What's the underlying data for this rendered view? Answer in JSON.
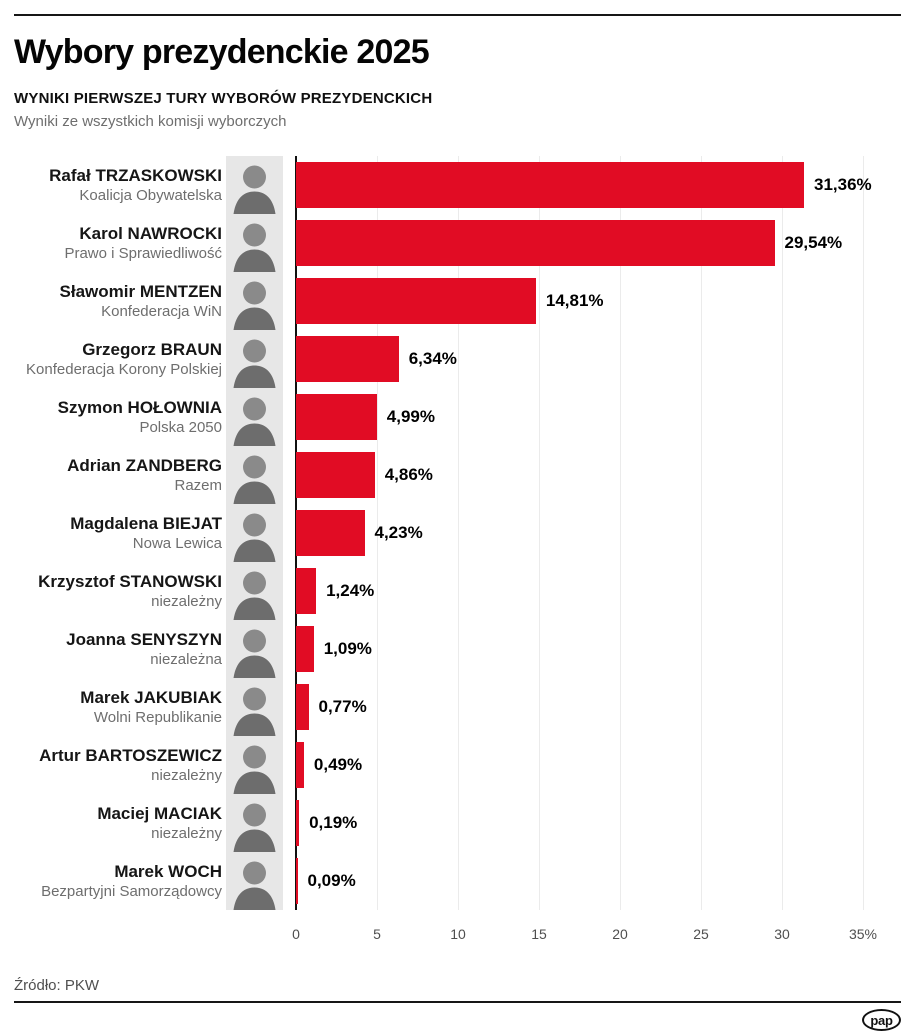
{
  "header": {
    "title": "Wybory prezydenckie 2025",
    "subtitle": "WYNIKI PIERWSZEJ TURY WYBORÓW PREZYDENCKICH",
    "description": "Wyniki ze wszystkich komisji wyborczych"
  },
  "chart_data": {
    "type": "bar",
    "orientation": "horizontal",
    "unit": "%",
    "xlim": [
      0,
      35
    ],
    "x_ticks": [
      "0",
      "5",
      "10",
      "15",
      "20",
      "25",
      "30",
      "35%"
    ],
    "grid": "vertical-light",
    "bar_color": "#e10c24",
    "axis_color": "#111111",
    "candidates": [
      {
        "name": "Rafał TRZASKOWSKI",
        "party": "Koalicja Obywatelska",
        "value": 31.36,
        "label": "31,36%"
      },
      {
        "name": "Karol NAWROCKI",
        "party": "Prawo i Sprawiedliwość",
        "value": 29.54,
        "label": "29,54%"
      },
      {
        "name": "Sławomir MENTZEN",
        "party": "Konfederacja WiN",
        "value": 14.81,
        "label": "14,81%"
      },
      {
        "name": "Grzegorz BRAUN",
        "party": "Konfederacja Korony Polskiej",
        "value": 6.34,
        "label": "6,34%"
      },
      {
        "name": "Szymon HOŁOWNIA",
        "party": "Polska 2050",
        "value": 4.99,
        "label": "4,99%"
      },
      {
        "name": "Adrian ZANDBERG",
        "party": "Razem",
        "value": 4.86,
        "label": "4,86%"
      },
      {
        "name": "Magdalena BIEJAT",
        "party": "Nowa Lewica",
        "value": 4.23,
        "label": "4,23%"
      },
      {
        "name": "Krzysztof STANOWSKI",
        "party": "niezależny",
        "value": 1.24,
        "label": "1,24%"
      },
      {
        "name": "Joanna SENYSZYN",
        "party": "niezależna",
        "value": 1.09,
        "label": "1,09%"
      },
      {
        "name": "Marek JAKUBIAK",
        "party": "Wolni Republikanie",
        "value": 0.77,
        "label": "0,77%"
      },
      {
        "name": "Artur BARTOSZEWICZ",
        "party": "niezależny",
        "value": 0.49,
        "label": "0,49%"
      },
      {
        "name": "Maciej MACIAK",
        "party": "niezależny",
        "value": 0.19,
        "label": "0,19%"
      },
      {
        "name": "Marek WOCH",
        "party": "Bezpartyjni Samorządowcy",
        "value": 0.09,
        "label": "0,09%"
      }
    ]
  },
  "footer": {
    "source": "Źródło: PKW",
    "logo_text": "pap"
  }
}
